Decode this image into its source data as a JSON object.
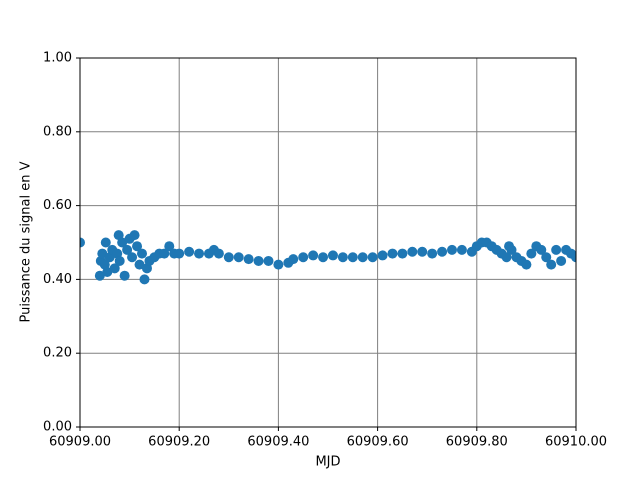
{
  "chart_data": {
    "type": "scatter",
    "x_label": "MJD",
    "y_label": "Puissance du signal en V",
    "color": "#1f77b4",
    "grid": true,
    "xlim": [
      60909.0,
      60910.0
    ],
    "xticks": [
      {
        "value": 60909.0,
        "label": "60909.00"
      },
      {
        "value": 60909.2,
        "label": "60909.20"
      },
      {
        "value": 60909.4,
        "label": "60909.40"
      },
      {
        "value": 60909.6,
        "label": "60909.60"
      },
      {
        "value": 60909.8,
        "label": "60909.80"
      },
      {
        "value": 60910.0,
        "label": "60910.00"
      }
    ],
    "ylim": [
      0,
      1
    ],
    "yticks": [
      {
        "value": 0,
        "label": "0.00"
      },
      {
        "value": 0.2,
        "label": "0.20"
      },
      {
        "value": 0.4,
        "label": "0.40"
      },
      {
        "value": 0.6,
        "label": "0.60"
      },
      {
        "value": 0.8,
        "label": "0.80"
      },
      {
        "value": 1,
        "label": "1.00"
      }
    ],
    "x": [
      60909.0,
      60909.04,
      60909.042,
      60909.045,
      60909.05,
      60909.052,
      60909.055,
      60909.06,
      60909.065,
      60909.07,
      60909.075,
      60909.078,
      60909.08,
      60909.085,
      60909.09,
      60909.095,
      60909.1,
      60909.105,
      60909.11,
      60909.115,
      60909.12,
      60909.125,
      60909.13,
      60909.135,
      60909.14,
      60909.15,
      60909.16,
      60909.17,
      60909.18,
      60909.19,
      60909.2,
      60909.22,
      60909.24,
      60909.26,
      60909.27,
      60909.28,
      60909.3,
      60909.32,
      60909.34,
      60909.36,
      60909.38,
      60909.4,
      60909.42,
      60909.43,
      60909.45,
      60909.47,
      60909.49,
      60909.51,
      60909.53,
      60909.55,
      60909.57,
      60909.59,
      60909.61,
      60909.63,
      60909.65,
      60909.67,
      60909.69,
      60909.71,
      60909.73,
      60909.75,
      60909.77,
      60909.79,
      60909.8,
      60909.81,
      60909.82,
      60909.83,
      60909.84,
      60909.85,
      60909.86,
      60909.865,
      60909.87,
      60909.88,
      60909.89,
      60909.9,
      60909.91,
      60909.92,
      60909.93,
      60909.94,
      60909.95,
      60909.96,
      60909.97,
      60909.98,
      60909.99,
      60910.0
    ],
    "values": [
      0.5,
      0.41,
      0.45,
      0.47,
      0.44,
      0.5,
      0.42,
      0.46,
      0.48,
      0.43,
      0.47,
      0.52,
      0.45,
      0.5,
      0.41,
      0.48,
      0.51,
      0.46,
      0.52,
      0.49,
      0.44,
      0.47,
      0.4,
      0.43,
      0.45,
      0.46,
      0.47,
      0.47,
      0.49,
      0.47,
      0.47,
      0.475,
      0.47,
      0.47,
      0.48,
      0.47,
      0.46,
      0.46,
      0.455,
      0.45,
      0.45,
      0.44,
      0.445,
      0.455,
      0.46,
      0.465,
      0.46,
      0.465,
      0.46,
      0.46,
      0.46,
      0.46,
      0.465,
      0.47,
      0.47,
      0.475,
      0.475,
      0.47,
      0.475,
      0.48,
      0.48,
      0.475,
      0.49,
      0.5,
      0.5,
      0.49,
      0.48,
      0.47,
      0.46,
      0.49,
      0.48,
      0.46,
      0.45,
      0.44,
      0.47,
      0.49,
      0.48,
      0.46,
      0.44,
      0.48,
      0.45,
      0.48,
      0.47,
      0.46
    ]
  }
}
